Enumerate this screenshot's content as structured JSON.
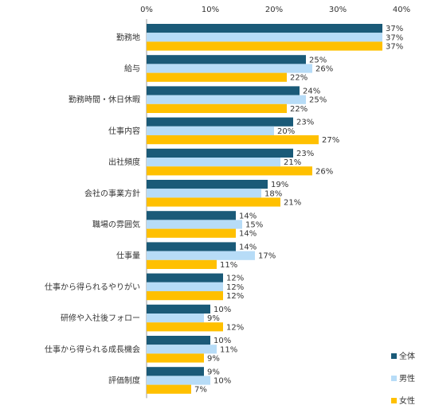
{
  "chart_data": {
    "type": "bar",
    "orientation": "horizontal",
    "categories": [
      "勤務地",
      "給与",
      "勤務時間・休日休暇",
      "仕事内容",
      "出社頻度",
      "会社の事業方針",
      "職場の雰囲気",
      "仕事量",
      "仕事から得られるやりがい",
      "研修や入社後フォロー",
      "仕事から得られる成長機会",
      "評価制度"
    ],
    "series": [
      {
        "name": "全体",
        "color": "#1a5a78",
        "values": [
          37,
          25,
          24,
          23,
          23,
          19,
          14,
          14,
          12,
          10,
          10,
          9
        ]
      },
      {
        "name": "男性",
        "color": "#b7dcf7",
        "values": [
          37,
          26,
          25,
          20,
          21,
          18,
          15,
          17,
          12,
          9,
          11,
          10
        ]
      },
      {
        "name": "女性",
        "color": "#ffc000",
        "values": [
          37,
          22,
          22,
          27,
          26,
          21,
          14,
          11,
          12,
          12,
          9,
          7
        ]
      }
    ],
    "xlim": [
      0,
      40
    ],
    "xticks": [
      0,
      10,
      20,
      30,
      40
    ],
    "tick_suffix": "%",
    "value_suffix": "%",
    "xaxis_position": "top",
    "grid": false,
    "legend_position": "bottom-right"
  }
}
